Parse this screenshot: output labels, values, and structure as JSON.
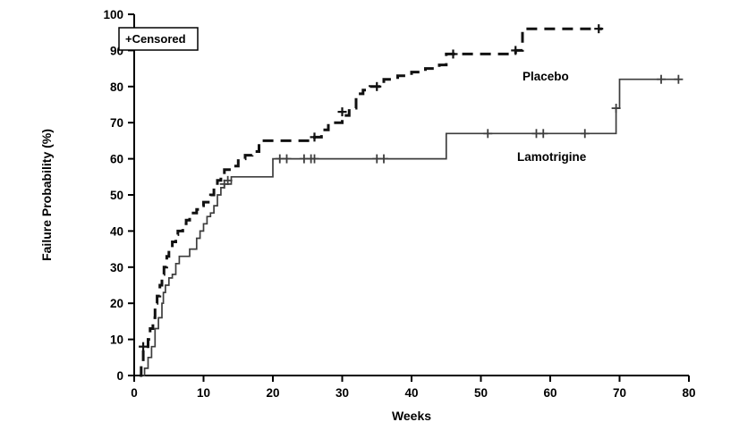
{
  "chart_data": {
    "type": "line",
    "subtype": "kaplan-meier-step",
    "title": "",
    "xlabel": "Weeks",
    "ylabel": "Failure Probability (%)",
    "xlim": [
      0,
      80
    ],
    "ylim": [
      0,
      100
    ],
    "xticks": [
      0,
      10,
      20,
      30,
      40,
      50,
      60,
      70,
      80
    ],
    "yticks": [
      0,
      10,
      20,
      30,
      40,
      50,
      60,
      70,
      80,
      90,
      100
    ],
    "grid": false,
    "legend": {
      "label": "+Censored",
      "position": "top-left-inside"
    },
    "colors": {
      "axis": "#000000",
      "placebo": "#111111",
      "lamotrigine": "#3d3d3d"
    },
    "series": [
      {
        "name": "Placebo",
        "line_style": "dashed",
        "points": [
          [
            0.8,
            0
          ],
          [
            1,
            3
          ],
          [
            1.3,
            8
          ],
          [
            2,
            10
          ],
          [
            2.3,
            13
          ],
          [
            2.7,
            16
          ],
          [
            3,
            20
          ],
          [
            3.3,
            22
          ],
          [
            3.7,
            25
          ],
          [
            4,
            28
          ],
          [
            4.3,
            30
          ],
          [
            4.7,
            33
          ],
          [
            5,
            35
          ],
          [
            5.5,
            37
          ],
          [
            6,
            39
          ],
          [
            6.3,
            40
          ],
          [
            7,
            42
          ],
          [
            7.5,
            43
          ],
          [
            8,
            45
          ],
          [
            9,
            46
          ],
          [
            9.5,
            47
          ],
          [
            10,
            48
          ],
          [
            11,
            50
          ],
          [
            11.5,
            52
          ],
          [
            12,
            54
          ],
          [
            12.5,
            55
          ],
          [
            13,
            57
          ],
          [
            14,
            58
          ],
          [
            15,
            60
          ],
          [
            16,
            61
          ],
          [
            17,
            62
          ],
          [
            18,
            65
          ],
          [
            26,
            66
          ],
          [
            27,
            68
          ],
          [
            28,
            70
          ],
          [
            30,
            72
          ],
          [
            31,
            74
          ],
          [
            32,
            78
          ],
          [
            33,
            79
          ],
          [
            34,
            80
          ],
          [
            36,
            82
          ],
          [
            38,
            83
          ],
          [
            40,
            84
          ],
          [
            42,
            85
          ],
          [
            44,
            86
          ],
          [
            45,
            89
          ],
          [
            55,
            90
          ],
          [
            56,
            96
          ],
          [
            67.5,
            96
          ]
        ],
        "censored": [
          [
            1.3,
            8
          ],
          [
            26,
            66
          ],
          [
            30,
            73
          ],
          [
            35,
            80
          ],
          [
            46,
            89
          ],
          [
            55,
            90
          ],
          [
            67,
            96
          ]
        ]
      },
      {
        "name": "Lamotrigine",
        "line_style": "solid",
        "points": [
          [
            1.2,
            0
          ],
          [
            1.5,
            2
          ],
          [
            2,
            5
          ],
          [
            2.5,
            8
          ],
          [
            3,
            13
          ],
          [
            3.5,
            16
          ],
          [
            4,
            20
          ],
          [
            4.2,
            23
          ],
          [
            4.5,
            25
          ],
          [
            5,
            27
          ],
          [
            5.5,
            28
          ],
          [
            6,
            31
          ],
          [
            6.5,
            33
          ],
          [
            8,
            35
          ],
          [
            9,
            38
          ],
          [
            9.5,
            40
          ],
          [
            10,
            42
          ],
          [
            10.5,
            44
          ],
          [
            11,
            45
          ],
          [
            11.5,
            47
          ],
          [
            12,
            50
          ],
          [
            12.5,
            52
          ],
          [
            13,
            53
          ],
          [
            14,
            55
          ],
          [
            20,
            60
          ],
          [
            44.5,
            60
          ],
          [
            45,
            67
          ],
          [
            69,
            67
          ],
          [
            69.5,
            74
          ],
          [
            70,
            82
          ],
          [
            78.5,
            82
          ]
        ],
        "censored": [
          [
            13,
            53
          ],
          [
            13.5,
            54
          ],
          [
            21,
            60
          ],
          [
            22,
            60
          ],
          [
            24.5,
            60
          ],
          [
            25.5,
            60
          ],
          [
            26,
            60
          ],
          [
            35,
            60
          ],
          [
            36,
            60
          ],
          [
            51,
            67
          ],
          [
            58,
            67
          ],
          [
            59,
            67
          ],
          [
            65,
            67
          ],
          [
            69.5,
            74
          ],
          [
            76,
            82
          ],
          [
            78.5,
            82
          ]
        ]
      }
    ]
  }
}
